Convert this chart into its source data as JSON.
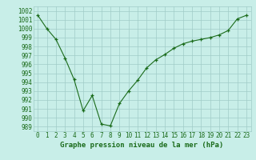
{
  "x": [
    0,
    1,
    2,
    3,
    4,
    5,
    6,
    7,
    8,
    9,
    10,
    11,
    12,
    13,
    14,
    15,
    16,
    17,
    18,
    19,
    20,
    21,
    22,
    23
  ],
  "y": [
    1001.5,
    1000.0,
    998.8,
    996.7,
    994.3,
    990.8,
    992.5,
    989.3,
    989.1,
    991.6,
    993.0,
    994.2,
    995.6,
    996.5,
    997.1,
    997.8,
    998.3,
    998.6,
    998.8,
    999.0,
    999.3,
    999.8,
    1001.1,
    1001.5
  ],
  "ylim": [
    988.5,
    1002.5
  ],
  "xlim": [
    -0.5,
    23.5
  ],
  "yticks": [
    989,
    990,
    991,
    992,
    993,
    994,
    995,
    996,
    997,
    998,
    999,
    1000,
    1001,
    1002
  ],
  "xticks": [
    0,
    1,
    2,
    3,
    4,
    5,
    6,
    7,
    8,
    9,
    10,
    11,
    12,
    13,
    14,
    15,
    16,
    17,
    18,
    19,
    20,
    21,
    22,
    23
  ],
  "line_color": "#1a6b1a",
  "marker_color": "#1a6b1a",
  "bg_color": "#c8eee8",
  "grid_color": "#a0ccc8",
  "xlabel": "Graphe pression niveau de la mer (hPa)",
  "xlabel_color": "#1a6b1a",
  "tick_color": "#1a6b1a",
  "xlabel_fontsize": 6.5,
  "tick_fontsize": 5.5
}
